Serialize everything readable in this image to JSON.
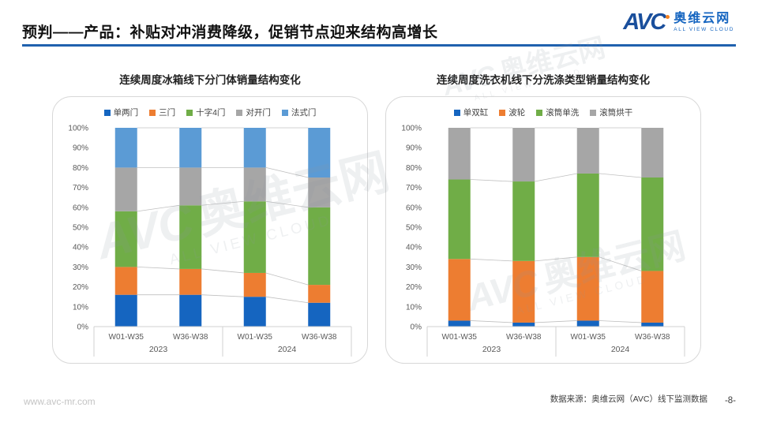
{
  "header": {
    "title": "预判——产品：补贴对冲消费降级，促销节点迎来结构高增长",
    "logo": {
      "brand": "AVC",
      "name": "奥维云网",
      "tagline": "ALL VIEW CLOUD"
    }
  },
  "watermark": {
    "brand": "AVC",
    "name": "奥维云网",
    "tagline": "ALL VIEW CLOUD"
  },
  "footer": {
    "website": "www.avc-mr.com",
    "source": "数据来源：奥维云网（AVC）线下监测数据",
    "page": "-8-"
  },
  "chart_data": [
    {
      "type": "stacked-bar",
      "title": "连续周度冰箱线下分门体销量结构变化",
      "categories": [
        "W01-W35",
        "W36-W38",
        "W01-W35",
        "W36-W38"
      ],
      "group_labels": [
        "2023",
        "2024"
      ],
      "y_ticks": [
        "100%",
        "90%",
        "80%",
        "70%",
        "60%",
        "50%",
        "40%",
        "30%",
        "20%",
        "10%",
        "0%"
      ],
      "ylim": [
        0,
        100
      ],
      "grid": false,
      "legend_position": "top",
      "series": [
        {
          "name": "单两门",
          "color": "#1565C0",
          "values": [
            16,
            16,
            15,
            12
          ]
        },
        {
          "name": "三门",
          "color": "#ED7D31",
          "values": [
            14,
            13,
            12,
            9
          ]
        },
        {
          "name": "十字4门",
          "color": "#70AD47",
          "values": [
            28,
            32,
            36,
            39
          ]
        },
        {
          "name": "对开门",
          "color": "#A6A6A6",
          "values": [
            22,
            19,
            17,
            15
          ]
        },
        {
          "name": "法式门",
          "color": "#5B9BD5",
          "values": [
            20,
            20,
            20,
            25
          ]
        }
      ]
    },
    {
      "type": "stacked-bar",
      "title": "连续周度洗衣机线下分洗涤类型销量结构变化",
      "categories": [
        "W01-W35",
        "W36-W38",
        "W01-W35",
        "W36-W38"
      ],
      "group_labels": [
        "2023",
        "2024"
      ],
      "y_ticks": [
        "100%",
        "90%",
        "80%",
        "70%",
        "60%",
        "50%",
        "40%",
        "30%",
        "20%",
        "10%",
        "0%"
      ],
      "ylim": [
        0,
        100
      ],
      "grid": false,
      "legend_position": "top",
      "series": [
        {
          "name": "单双缸",
          "color": "#1565C0",
          "values": [
            3,
            2,
            3,
            2
          ]
        },
        {
          "name": "波轮",
          "color": "#ED7D31",
          "values": [
            31,
            31,
            32,
            26
          ]
        },
        {
          "name": "滚筒单洗",
          "color": "#70AD47",
          "values": [
            40,
            40,
            42,
            47
          ]
        },
        {
          "name": "滚筒烘干",
          "color": "#A6A6A6",
          "values": [
            26,
            27,
            23,
            25
          ]
        }
      ]
    }
  ]
}
